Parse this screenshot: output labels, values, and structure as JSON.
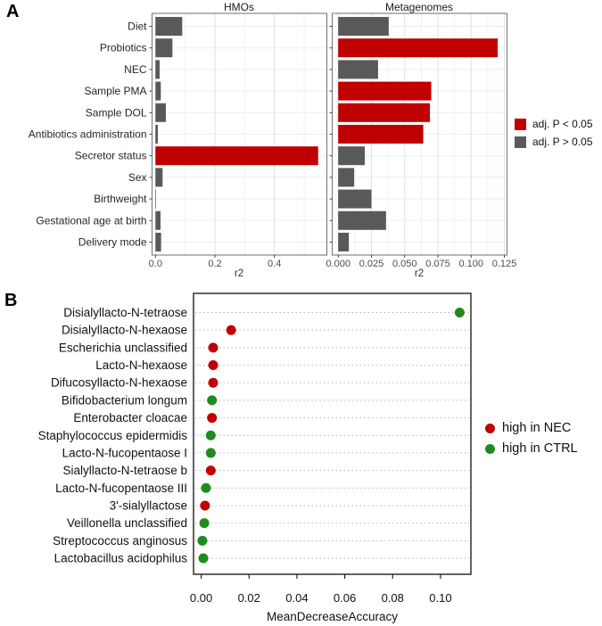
{
  "figure": {
    "panel_a_label": "A",
    "panel_b_label": "B"
  },
  "colors": {
    "significant_red": "#C00000",
    "nonsignificant_gray": "#595959",
    "nec_red": "#C00000",
    "ctrl_green": "#1F8B1F"
  },
  "chart_data": [
    {
      "id": "hmos",
      "type": "bar",
      "orientation": "horizontal",
      "title": "HMOs",
      "xlabel": "r2",
      "categories": [
        "Diet",
        "Probiotics",
        "NEC",
        "Sample PMA",
        "Sample DOL",
        "Antibiotics administration",
        "Secretor status",
        "Sex",
        "Birthweight",
        "Gestational age at birth",
        "Delivery mode"
      ],
      "values": [
        0.09,
        0.057,
        0.014,
        0.018,
        0.035,
        0.008,
        0.547,
        0.024,
        0.002,
        0.017,
        0.019
      ],
      "significant": [
        false,
        false,
        false,
        false,
        false,
        false,
        true,
        false,
        false,
        false,
        false
      ],
      "xticks": [
        0.0,
        0.2,
        0.4
      ],
      "xtick_labels": [
        "0.0",
        "0.2",
        "0.4"
      ],
      "xlim": [
        -0.0114,
        0.5763
      ],
      "grid": true,
      "legend_position": "right"
    },
    {
      "id": "metagenomes",
      "type": "bar",
      "orientation": "horizontal",
      "title": "Metagenomes",
      "xlabel": "r2",
      "categories": [
        "Diet",
        "Probiotics",
        "NEC",
        "Sample PMA",
        "Sample DOL",
        "Antibiotics administration",
        "Secretor status",
        "Sex",
        "Birthweight",
        "Gestational age at birth",
        "Delivery mode"
      ],
      "values": [
        0.038,
        0.12,
        0.03,
        0.07,
        0.069,
        0.064,
        0.02,
        0.012,
        0.025,
        0.036,
        0.008
      ],
      "significant": [
        false,
        true,
        false,
        true,
        true,
        true,
        false,
        false,
        false,
        false,
        false
      ],
      "xticks": [
        0.0,
        0.025,
        0.05,
        0.075,
        0.1,
        0.125
      ],
      "xtick_labels": [
        "0.000",
        "0.025",
        "0.050",
        "0.075",
        "0.100",
        "0.125"
      ],
      "xlim": [
        -0.0045,
        0.127
      ],
      "grid": true,
      "legend_position": "right"
    },
    {
      "id": "mda",
      "type": "scatter",
      "orientation": "horizontal",
      "title": "",
      "xlabel": "MeanDecreaseAccuracy",
      "categories": [
        "Disialyllacto-N-tetraose",
        "Disialyllacto-N-hexaose",
        "Escherichia unclassified",
        "Lacto-N-hexaose",
        "Difucosyllacto-N-hexaose",
        "Bifidobacterium longum",
        "Enterobacter cloacae",
        "Staphylococcus epidermidis",
        "Lacto-N-fucopentaose I",
        "Sialyllacto-N-tetraose b",
        "Lacto-N-fucopentaose III",
        "3'-sialyllactose",
        "Veillonella unclassified",
        "Streptococcus anginosus",
        "Lactobacillus acidophilus"
      ],
      "values": [
        0.108,
        0.0125,
        0.005,
        0.005,
        0.005,
        0.0045,
        0.0045,
        0.004,
        0.004,
        0.004,
        0.002,
        0.0016,
        0.0013,
        0.0005,
        0.0009
      ],
      "group": [
        "CTRL",
        "NEC",
        "NEC",
        "NEC",
        "NEC",
        "CTRL",
        "NEC",
        "CTRL",
        "CTRL",
        "NEC",
        "CTRL",
        "NEC",
        "CTRL",
        "CTRL",
        "CTRL"
      ],
      "xticks": [
        0.0,
        0.02,
        0.04,
        0.06,
        0.08,
        0.1
      ],
      "xtick_labels": [
        "0.00",
        "0.02",
        "0.04",
        "0.06",
        "0.08",
        "0.10"
      ],
      "xlim": [
        -0.0032,
        0.1127
      ],
      "grid": "dotted-horizontal",
      "legend_position": "right"
    }
  ],
  "legend_a": {
    "items": [
      {
        "label": "adj. P < 0.05",
        "color_key": "significant_red"
      },
      {
        "label": "adj. P > 0.05",
        "color_key": "nonsignificant_gray"
      }
    ]
  },
  "legend_b": {
    "items": [
      {
        "label": "high in NEC",
        "color_key": "nec_red"
      },
      {
        "label": "high in CTRL",
        "color_key": "ctrl_green"
      }
    ]
  }
}
